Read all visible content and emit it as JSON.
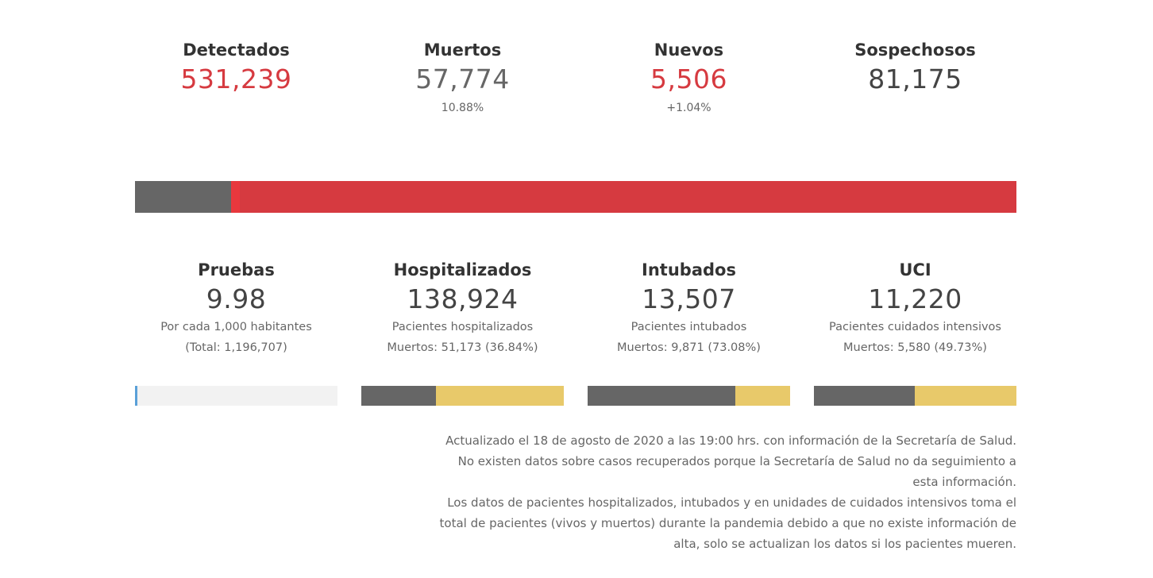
{
  "top_stats": [
    {
      "label": "Detectados",
      "value": "531,239",
      "sub": ""
    },
    {
      "label": "Muertos",
      "value": "57,774",
      "sub": "10.88%"
    },
    {
      "label": "Nuevos",
      "value": "5,506",
      "sub": "+1.04%"
    },
    {
      "label": "Sospechosos",
      "value": "81,175",
      "sub": ""
    }
  ],
  "main_bar": {
    "segments": [
      {
        "name": "muertos",
        "fraction": 0.1088,
        "color": "#666666"
      },
      {
        "name": "nuevos",
        "fraction": 0.0104,
        "color": "#e8383d"
      },
      {
        "name": "detectados",
        "fraction": 0.8808,
        "color": "#d63a40"
      }
    ]
  },
  "mid_stats": [
    {
      "label": "Pruebas",
      "value": "9.98",
      "sub1": "Por cada 1,000 habitantes",
      "sub2": "(Total: 1,196,707)"
    },
    {
      "label": "Hospitalizados",
      "value": "138,924",
      "sub1": "Pacientes hospitalizados",
      "sub2": "Muertos: 51,173 (36.84%)"
    },
    {
      "label": "Intubados",
      "value": "13,507",
      "sub1": "Pacientes intubados",
      "sub2": "Muertos: 9,871 (73.08%)"
    },
    {
      "label": "UCI",
      "value": "11,220",
      "sub1": "Pacientes cuidados intensivos",
      "sub2": "Muertos: 5,580 (49.73%)"
    }
  ],
  "mini_bars": [
    {
      "name": "pruebas",
      "fill": 0.00998,
      "fill_color": "#5aa0d8",
      "rest_color": "#f2f2f2"
    },
    {
      "name": "hospitalizados",
      "fill": 0.3684,
      "fill_color": "#666666",
      "rest_color": "#e8c96a"
    },
    {
      "name": "intubados",
      "fill": 0.7308,
      "fill_color": "#666666",
      "rest_color": "#e8c96a"
    },
    {
      "name": "uci",
      "fill": 0.4973,
      "fill_color": "#666666",
      "rest_color": "#e8c96a"
    }
  ],
  "footnote": {
    "line1": "Actualizado el 18 de agosto de 2020 a las 19:00 hrs. con información de la Secretaría de Salud.",
    "line2": "No existen datos sobre casos recuperados porque la Secretaría de Salud no da seguimiento a esta información.",
    "line3": "Los datos de pacientes hospitalizados, intubados y en unidades de cuidados intensivos toma el total de pacientes (vivos y muertos) durante la pandemia debido a que no existe información de alta, solo se actualizan los datos si los pacientes mueren."
  }
}
